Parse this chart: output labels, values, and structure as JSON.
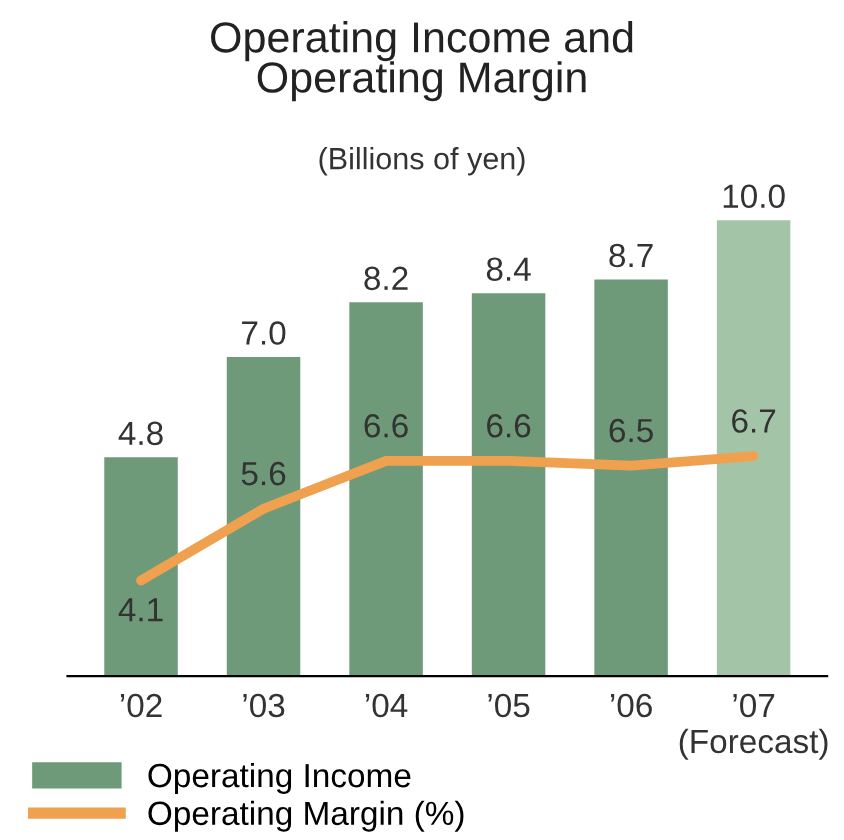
{
  "chart_data": {
    "type": "bar",
    "title": "Operating Income and\nOperating Margin",
    "subtitle": "(Billions of yen)",
    "categories": [
      "’02",
      "’03",
      "’04",
      "’05",
      "’06",
      "’07\n(Forecast)"
    ],
    "series": [
      {
        "name": "Operating Income",
        "colors": [
          "#6f9a79",
          "#6f9a79",
          "#6f9a79",
          "#6f9a79",
          "#6f9a79",
          "#a4c4a8"
        ],
        "values": [
          4.8,
          7.0,
          8.2,
          8.4,
          8.7,
          10.0
        ],
        "value_labels": [
          "4.8",
          "7.0",
          "8.2",
          "8.4",
          "8.7",
          "10.0"
        ]
      },
      {
        "name": "Operating Margin (%)",
        "type": "line",
        "axis": "y2",
        "color": "#f0a14f",
        "values": [
          4.1,
          5.6,
          6.6,
          6.6,
          6.5,
          6.7
        ],
        "value_labels": [
          "4.1",
          "5.6",
          "6.6",
          "6.6",
          "6.5",
          "6.7"
        ]
      }
    ],
    "tick_labels": "x",
    "legend": "bottom",
    "grid": false,
    "marker": "none",
    "line_style": "solid"
  }
}
